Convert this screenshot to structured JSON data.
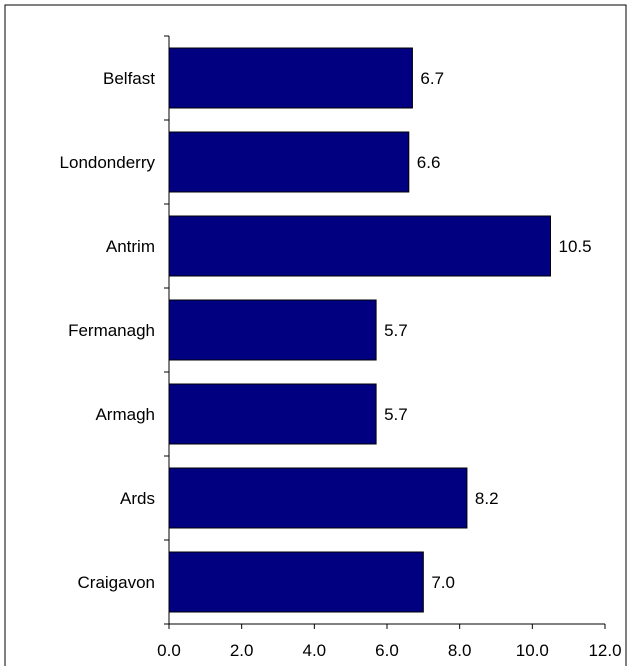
{
  "chart_data": {
    "type": "bar",
    "orientation": "horizontal",
    "categories": [
      "Belfast",
      "Londonderry",
      "Antrim",
      "Fermanagh",
      "Armagh",
      "Ards",
      "Craigavon"
    ],
    "values": [
      6.7,
      6.6,
      10.5,
      5.7,
      5.7,
      8.2,
      7.0
    ],
    "value_labels": [
      "6.7",
      "6.6",
      "10.5",
      "5.7",
      "5.7",
      "8.2",
      "7.0"
    ],
    "xlim": [
      0,
      12
    ],
    "x_ticks": [
      0,
      2,
      4,
      6,
      8,
      10,
      12
    ],
    "x_tick_labels": [
      "0.0",
      "2.0",
      "4.0",
      "6.0",
      "8.0",
      "10.0",
      "12.0"
    ],
    "grid": false,
    "legend": "none",
    "bar_color": "#000080",
    "bar_edge_color": "#000000"
  }
}
